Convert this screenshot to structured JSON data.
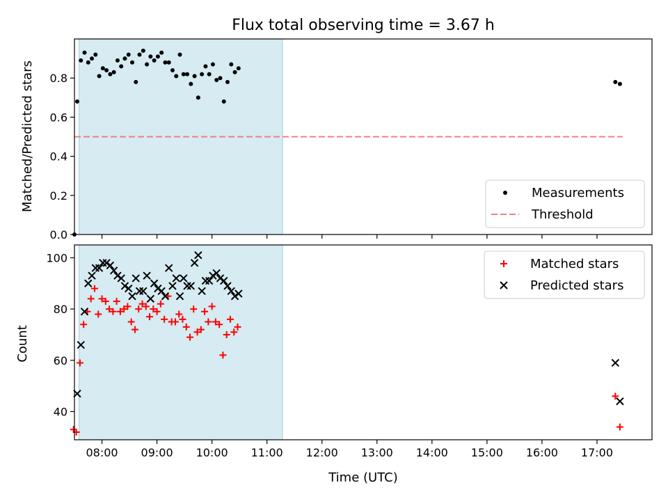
{
  "chart_data": [
    {
      "type": "scatter",
      "title": "Flux total observing time = 3.67 h",
      "ylabel": "Matched/Predicted stars",
      "xlabel": "",
      "xlim": [
        "07:30",
        "18:00"
      ],
      "ylim": [
        0,
        1.0
      ],
      "yticks": [
        "0.0",
        "0.2",
        "0.4",
        "0.6",
        "0.8"
      ],
      "shaded_interval": [
        "07:35",
        "11:17"
      ],
      "legend_position": "lower-right",
      "grid": false,
      "series": [
        {
          "name": "Measurements",
          "marker": "dot",
          "color": "#000000",
          "points": [
            [
              "07:30",
              0.0
            ],
            [
              "07:33",
              0.68
            ],
            [
              "07:37",
              0.89
            ],
            [
              "07:41",
              0.93
            ],
            [
              "07:45",
              0.88
            ],
            [
              "07:49",
              0.9
            ],
            [
              "07:53",
              0.92
            ],
            [
              "07:57",
              0.81
            ],
            [
              "08:01",
              0.85
            ],
            [
              "08:05",
              0.84
            ],
            [
              "08:09",
              0.82
            ],
            [
              "08:13",
              0.83
            ],
            [
              "08:17",
              0.89
            ],
            [
              "08:21",
              0.86
            ],
            [
              "08:25",
              0.9
            ],
            [
              "08:29",
              0.92
            ],
            [
              "08:33",
              0.88
            ],
            [
              "08:37",
              0.78
            ],
            [
              "08:41",
              0.92
            ],
            [
              "08:45",
              0.94
            ],
            [
              "08:49",
              0.87
            ],
            [
              "08:53",
              0.91
            ],
            [
              "08:57",
              0.89
            ],
            [
              "09:01",
              0.91
            ],
            [
              "09:05",
              0.93
            ],
            [
              "09:09",
              0.88
            ],
            [
              "09:13",
              0.88
            ],
            [
              "09:17",
              0.84
            ],
            [
              "09:21",
              0.81
            ],
            [
              "09:25",
              0.92
            ],
            [
              "09:29",
              0.82
            ],
            [
              "09:33",
              0.82
            ],
            [
              "09:37",
              0.77
            ],
            [
              "09:41",
              0.81
            ],
            [
              "09:45",
              0.7
            ],
            [
              "09:49",
              0.82
            ],
            [
              "09:53",
              0.86
            ],
            [
              "09:57",
              0.82
            ],
            [
              "10:01",
              0.87
            ],
            [
              "10:05",
              0.79
            ],
            [
              "10:09",
              0.8
            ],
            [
              "10:13",
              0.68
            ],
            [
              "10:17",
              0.78
            ],
            [
              "10:21",
              0.87
            ],
            [
              "10:25",
              0.83
            ],
            [
              "10:29",
              0.85
            ],
            [
              "17:20",
              0.78
            ],
            [
              "17:25",
              0.77
            ]
          ]
        },
        {
          "name": "Threshold",
          "marker": "dashed-line",
          "color": "#f08080",
          "points": [
            [
              "07:30",
              0.5
            ],
            [
              "17:28",
              0.5
            ]
          ]
        }
      ]
    },
    {
      "type": "scatter",
      "title": "",
      "ylabel": "Count",
      "xlabel": "Time (UTC)",
      "xlim": [
        "07:30",
        "18:00"
      ],
      "ylim": [
        29,
        105
      ],
      "yticks": [
        "40",
        "60",
        "80",
        "100"
      ],
      "xticks": [
        "08:00",
        "09:00",
        "10:00",
        "11:00",
        "12:00",
        "13:00",
        "14:00",
        "15:00",
        "16:00",
        "17:00"
      ],
      "shaded_interval": [
        "07:35",
        "11:17"
      ],
      "legend_position": "upper-right",
      "grid": false,
      "series": [
        {
          "name": "Matched stars",
          "marker": "plus",
          "color": "#ff0000",
          "points": [
            [
              "07:29",
              33
            ],
            [
              "07:32",
              32
            ],
            [
              "07:36",
              59
            ],
            [
              "07:40",
              74
            ],
            [
              "07:44",
              79
            ],
            [
              "07:48",
              84
            ],
            [
              "07:52",
              88
            ],
            [
              "07:56",
              78
            ],
            [
              "08:00",
              84
            ],
            [
              "08:04",
              83
            ],
            [
              "08:08",
              80
            ],
            [
              "08:12",
              79
            ],
            [
              "08:16",
              83
            ],
            [
              "08:20",
              79
            ],
            [
              "08:24",
              80
            ],
            [
              "08:28",
              81
            ],
            [
              "08:32",
              75
            ],
            [
              "08:36",
              72
            ],
            [
              "08:40",
              80
            ],
            [
              "08:44",
              82
            ],
            [
              "08:48",
              81
            ],
            [
              "08:52",
              77
            ],
            [
              "08:56",
              80
            ],
            [
              "09:00",
              79
            ],
            [
              "09:04",
              82
            ],
            [
              "09:08",
              76
            ],
            [
              "09:12",
              85
            ],
            [
              "09:16",
              75
            ],
            [
              "09:20",
              75
            ],
            [
              "09:24",
              78
            ],
            [
              "09:28",
              76
            ],
            [
              "09:32",
              73
            ],
            [
              "09:36",
              69
            ],
            [
              "09:40",
              80
            ],
            [
              "09:44",
              71
            ],
            [
              "09:48",
              72
            ],
            [
              "09:52",
              79
            ],
            [
              "09:56",
              75
            ],
            [
              "10:00",
              81
            ],
            [
              "10:04",
              75
            ],
            [
              "10:08",
              74
            ],
            [
              "10:12",
              62
            ],
            [
              "10:16",
              70
            ],
            [
              "10:20",
              76
            ],
            [
              "10:24",
              71
            ],
            [
              "10:28",
              73
            ],
            [
              "17:20",
              46
            ],
            [
              "17:25",
              34
            ]
          ]
        },
        {
          "name": "Predicted stars",
          "marker": "x",
          "color": "#000000",
          "points": [
            [
              "07:33",
              47
            ],
            [
              "07:37",
              66
            ],
            [
              "07:41",
              79
            ],
            [
              "07:45",
              90
            ],
            [
              "07:49",
              93
            ],
            [
              "07:53",
              96
            ],
            [
              "07:57",
              96
            ],
            [
              "08:01",
              98
            ],
            [
              "08:05",
              98
            ],
            [
              "08:09",
              97
            ],
            [
              "08:13",
              95
            ],
            [
              "08:17",
              93
            ],
            [
              "08:21",
              92
            ],
            [
              "08:25",
              89
            ],
            [
              "08:29",
              88
            ],
            [
              "08:33",
              85
            ],
            [
              "08:37",
              92
            ],
            [
              "08:41",
              87
            ],
            [
              "08:45",
              87
            ],
            [
              "08:49",
              93
            ],
            [
              "08:53",
              84
            ],
            [
              "08:57",
              90
            ],
            [
              "09:01",
              88
            ],
            [
              "09:05",
              87
            ],
            [
              "09:09",
              85
            ],
            [
              "09:13",
              96
            ],
            [
              "09:17",
              89
            ],
            [
              "09:21",
              92
            ],
            [
              "09:25",
              85
            ],
            [
              "09:29",
              92
            ],
            [
              "09:33",
              89
            ],
            [
              "09:37",
              89
            ],
            [
              "09:41",
              98
            ],
            [
              "09:45",
              101
            ],
            [
              "09:49",
              87
            ],
            [
              "09:53",
              91
            ],
            [
              "09:57",
              91
            ],
            [
              "10:01",
              93
            ],
            [
              "10:05",
              94
            ],
            [
              "10:09",
              92
            ],
            [
              "10:13",
              91
            ],
            [
              "10:17",
              89
            ],
            [
              "10:21",
              87
            ],
            [
              "10:25",
              85
            ],
            [
              "10:29",
              86
            ],
            [
              "17:20",
              59
            ],
            [
              "17:25",
              44
            ]
          ]
        }
      ]
    }
  ]
}
